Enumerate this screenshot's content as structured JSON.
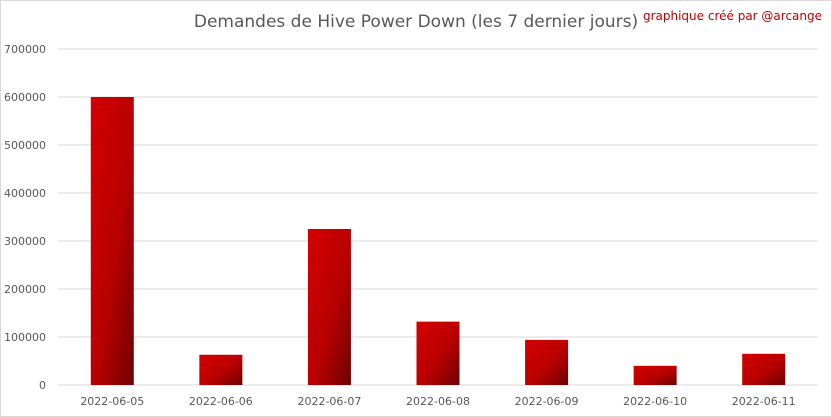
{
  "chart_data": {
    "type": "bar",
    "title": "Demandes de Hive Power Down (les 7 dernier jours)",
    "annotation": "graphique créé par @arcange",
    "categories": [
      "2022-06-05",
      "2022-06-06",
      "2022-06-07",
      "2022-06-08",
      "2022-06-09",
      "2022-06-10",
      "2022-06-11"
    ],
    "values": [
      600000,
      63000,
      325000,
      132000,
      94000,
      40000,
      65000
    ],
    "ylim": [
      0,
      700000
    ],
    "yticks": [
      "0",
      "100000",
      "200000",
      "300000",
      "400000",
      "500000",
      "600000",
      "700000"
    ],
    "xlabel": "",
    "ylabel": "",
    "grid": true,
    "legend": "none",
    "colors": {
      "bar_light": "#d40000",
      "bar_dark": "#7a0000",
      "grid": "#d9d9d9",
      "text": "#595959",
      "annotation": "#c00000"
    }
  }
}
